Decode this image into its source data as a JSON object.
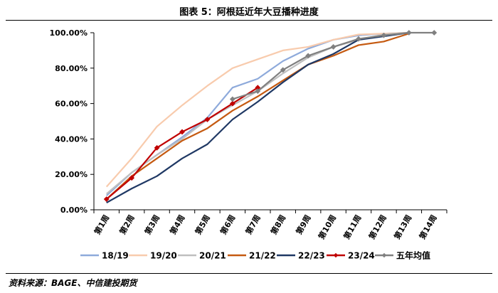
{
  "figure": {
    "title": "图表 5：阿根廷近年大豆播种进度",
    "source": "资料来源：BAGE、中信建投期货"
  },
  "chart_data": {
    "type": "line",
    "title": "图表 5：阿根廷近年大豆播种进度",
    "xlabel": "",
    "ylabel": "",
    "ylim": [
      0,
      100
    ],
    "yticks": [
      "0.00%",
      "20.00%",
      "40.00%",
      "60.00%",
      "80.00%",
      "100.00%"
    ],
    "categories": [
      "第1周",
      "第2周",
      "第3周",
      "第4周",
      "第5周",
      "第6周",
      "第7周",
      "第8周",
      "第9周",
      "第10周",
      "第11周",
      "第12周",
      "第13周",
      "第14周"
    ],
    "legend_position": "bottom",
    "series": [
      {
        "name": "18/19",
        "color": "#8eaadb",
        "marker": "none",
        "values": [
          8,
          21,
          31,
          41,
          52,
          69,
          74,
          84,
          91,
          96,
          98.5,
          99.5,
          100,
          null
        ]
      },
      {
        "name": "19/20",
        "color": "#f8cbad",
        "marker": "none",
        "values": [
          13,
          29,
          47,
          59,
          70,
          80,
          85,
          90,
          92,
          96,
          99,
          99.5,
          100,
          null
        ]
      },
      {
        "name": "20/21",
        "color": "#bfbfbf",
        "marker": "none",
        "values": [
          9,
          21,
          31,
          40,
          51,
          59,
          67,
          77,
          86,
          92,
          96,
          99,
          100,
          null
        ]
      },
      {
        "name": "21/22",
        "color": "#c55a11",
        "marker": "none",
        "values": [
          6,
          19,
          29,
          39,
          46,
          56,
          64,
          73,
          82,
          87,
          93,
          95,
          99.5,
          null
        ]
      },
      {
        "name": "22/23",
        "color": "#1f3864",
        "marker": "none",
        "values": [
          4,
          12,
          19,
          29,
          37,
          51,
          61,
          72,
          82,
          88,
          96,
          98,
          100,
          null
        ]
      },
      {
        "name": "23/24",
        "color": "#c00000",
        "marker": "diamond",
        "values": [
          6,
          18,
          35,
          44,
          51,
          60,
          69,
          null,
          null,
          null,
          null,
          null,
          null,
          null
        ]
      },
      {
        "name": "五年均值",
        "color": "#808080",
        "marker": "diamond",
        "values": [
          null,
          null,
          null,
          null,
          null,
          62.5,
          67,
          79,
          87,
          92,
          96.5,
          98.5,
          100,
          100
        ]
      }
    ]
  }
}
